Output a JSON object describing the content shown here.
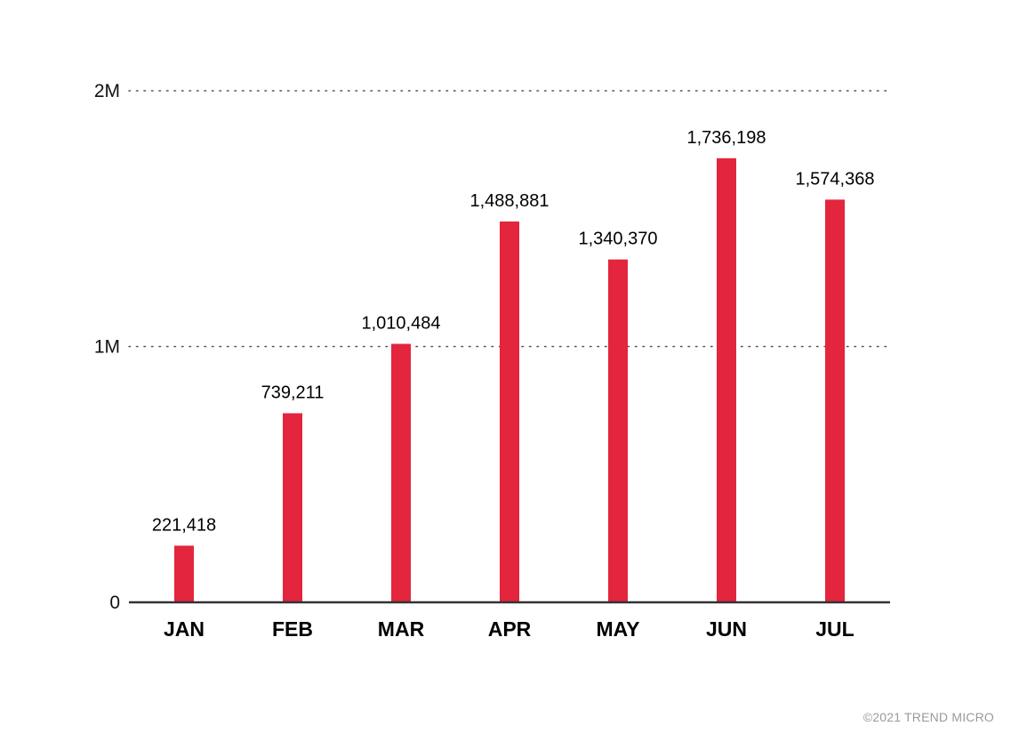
{
  "chart_data": {
    "type": "bar",
    "title": "",
    "xlabel": "",
    "ylabel": "",
    "categories": [
      "JAN",
      "FEB",
      "MAR",
      "APR",
      "MAY",
      "JUN",
      "JUL"
    ],
    "values": [
      221418,
      739211,
      1010484,
      1488881,
      1340370,
      1736198,
      1574368
    ],
    "value_labels": [
      "221,418",
      "739,211",
      "1,010,484",
      "1,488,881",
      "1,340,370",
      "1,736,198",
      "1,574,368"
    ],
    "ylim": [
      0,
      2000000
    ],
    "yticks": [
      0,
      1000000,
      2000000
    ],
    "ytick_labels": [
      "0",
      "1M",
      "2M"
    ],
    "grid": "dotted-horizontal",
    "bar_color": "#e3253d"
  },
  "credit": "©2021 TREND MICRO"
}
